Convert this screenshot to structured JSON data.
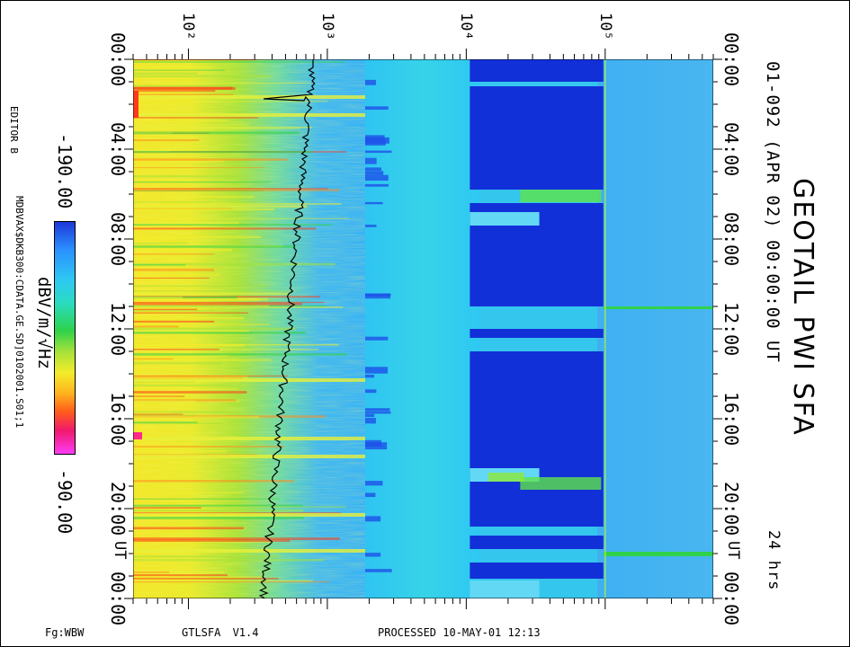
{
  "title": "GEOTAIL PWI SFA",
  "subtitle": "01-092 (APR 02) 00:00:00 UT",
  "duration": "24 hrs",
  "ut_label": "UT",
  "editor": "EDITOR B",
  "data_file": "MDBVAX$DKB300:CDATA.GE.SD]0102001.S01;1",
  "colorbar": {
    "min": "-190.00",
    "max": "-90.00",
    "unit": "dBV/m/√Hz"
  },
  "footer": {
    "left": "Fg:WBW",
    "program": "GTLSFA V1.4",
    "processed": "PROCESSED 10-MAY-01 12:13"
  },
  "chart_data": {
    "type": "heatmap",
    "title": "GEOTAIL PWI SFA",
    "x_axis": {
      "scale": "log",
      "range_hz": [
        40,
        600000
      ],
      "tick_labels": [
        "10²",
        "10³",
        "10⁴",
        "10⁵"
      ],
      "tick_values": [
        100,
        1000,
        10000,
        100000
      ]
    },
    "y_axis": {
      "label": "UT",
      "range": [
        "00:00",
        "24:00"
      ],
      "tick_labels": [
        "00:00",
        "04:00",
        "08:00",
        "12:00",
        "16:00",
        "20:00",
        "00:00"
      ],
      "direction": "down"
    },
    "z_axis": {
      "label": "dBV/m/√Hz",
      "range": [
        -190,
        -90
      ]
    },
    "colormap": [
      "#1e38d8",
      "#2a90ff",
      "#2ec8f2",
      "#29dcc0",
      "#2fd24a",
      "#a6e23a",
      "#f3ec2a",
      "#ffb21e",
      "#ff5b1b",
      "#f0186e",
      "#ff3cf5"
    ],
    "grid": false
  }
}
